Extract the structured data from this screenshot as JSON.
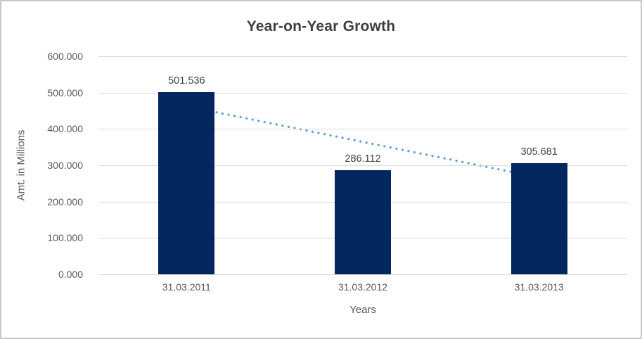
{
  "window": {
    "background_color": "#ffffff",
    "border_color": "#c8c8c8"
  },
  "chart_data": {
    "type": "bar",
    "title": "Year-on-Year Growth",
    "xlabel": "Years",
    "ylabel": "Amt. in Millions",
    "categories": [
      "31.03.2011",
      "31.03.2012",
      "31.03.2013"
    ],
    "values": [
      501.536,
      286.112,
      305.681
    ],
    "data_labels": [
      "501.536",
      "286.112",
      "305.681"
    ],
    "ylim": [
      0,
      600
    ],
    "ytick_step": 100,
    "ytick_labels": [
      "600.000",
      "500.000",
      "400.000",
      "300.000",
      "200.000",
      "100.000",
      "0.000"
    ],
    "grid": true,
    "legend": "none",
    "bar_color": "#03265f",
    "grid_color": "#d9d9d9",
    "title_color": "#3f3f3f",
    "tick_label_color": "#595959",
    "data_label_color": "#404040",
    "trendline": {
      "type": "linear",
      "style": "dotted",
      "color": "#5b9bd5",
      "start_value": 462.37,
      "end_value": 266.51
    }
  }
}
